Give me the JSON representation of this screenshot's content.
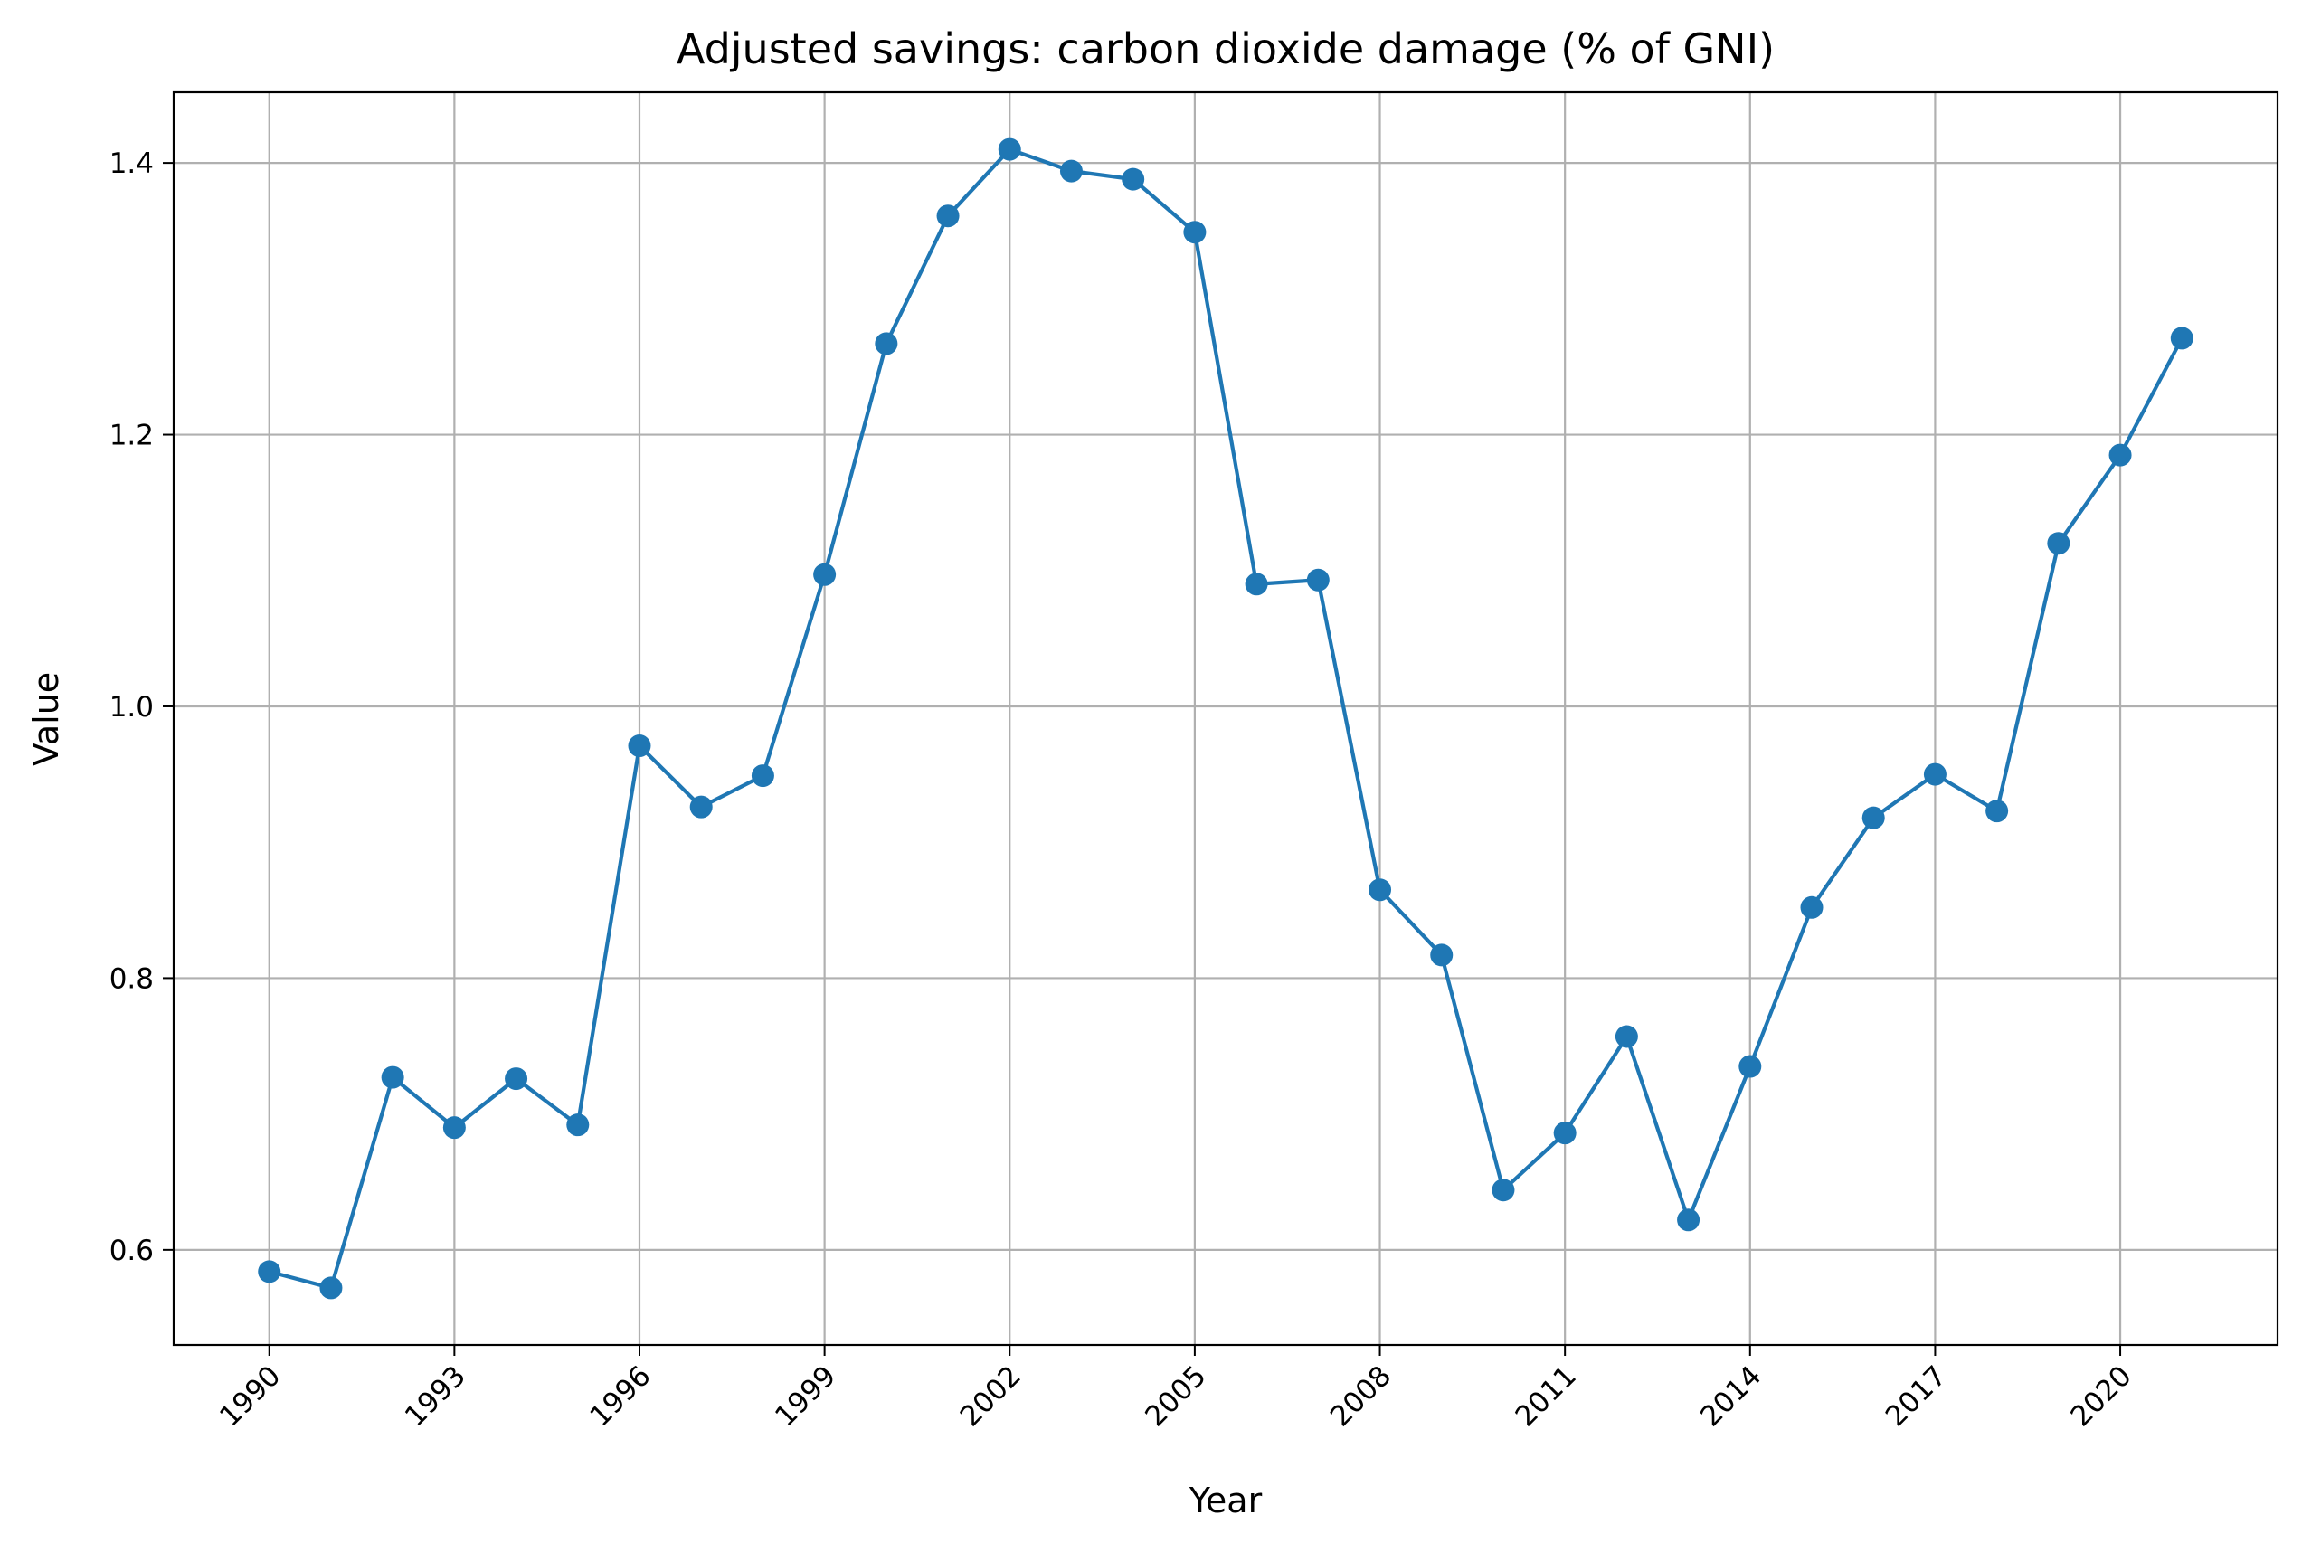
{
  "chart_data": {
    "type": "line",
    "title": "Adjusted savings: carbon dioxide damage (% of GNI)",
    "xlabel": "Year",
    "ylabel": "Value",
    "x": [
      1990,
      1991,
      1992,
      1993,
      1994,
      1995,
      1996,
      1997,
      1998,
      1999,
      2000,
      2001,
      2002,
      2003,
      2004,
      2005,
      2006,
      2007,
      2008,
      2009,
      2010,
      2011,
      2012,
      2013,
      2014,
      2015,
      2016,
      2017,
      2018,
      2019,
      2020,
      2021
    ],
    "series": [
      {
        "values": [
          0.584,
          0.572,
          0.727,
          0.69,
          0.726,
          0.692,
          0.971,
          0.926,
          0.949,
          1.097,
          1.267,
          1.361,
          1.41,
          1.394,
          1.388,
          1.349,
          1.09,
          1.093,
          0.865,
          0.817,
          0.644,
          0.686,
          0.757,
          0.622,
          0.735,
          0.852,
          0.918,
          0.95,
          0.923,
          1.12,
          1.185,
          1.271
        ]
      }
    ],
    "xticks": [
      "1990",
      "1993",
      "1996",
      "1999",
      "2002",
      "2005",
      "2008",
      "2011",
      "2014",
      "2017",
      "2020"
    ],
    "yticks": [
      "0.6",
      "0.8",
      "1.0",
      "1.2",
      "1.4"
    ],
    "xlim": [
      1988.45,
      2022.55
    ],
    "ylim": [
      0.53,
      1.452
    ],
    "grid": true,
    "color": "#1f77b4",
    "marker": "circle"
  }
}
